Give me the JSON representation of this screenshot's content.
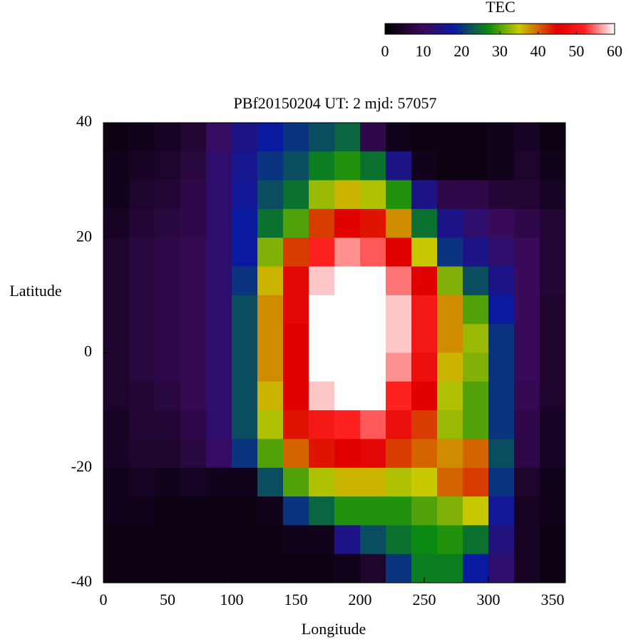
{
  "chart_data": {
    "type": "heatmap",
    "title": "PBf20150204  UT: 2  mjd: 57057",
    "x_label": "Longitude",
    "y_label": "Latitude",
    "colorbar_label": "TEC",
    "xlim": [
      0,
      360
    ],
    "xticks": [
      0,
      50,
      100,
      150,
      200,
      250,
      300,
      350
    ],
    "ylim": [
      -40,
      40
    ],
    "yticks": [
      -40,
      -20,
      0,
      20,
      40
    ],
    "clim": [
      0,
      60
    ],
    "cticks": [
      0,
      10,
      20,
      30,
      40,
      50,
      60
    ],
    "colorscale": [
      [
        0,
        "#000000"
      ],
      [
        10,
        "#3a0a5a"
      ],
      [
        18,
        "#0a1aa0"
      ],
      [
        27,
        "#0a8a10"
      ],
      [
        35,
        "#c8c800"
      ],
      [
        45,
        "#e00000"
      ],
      [
        52,
        "#ff2020"
      ],
      [
        60,
        "#ffffff"
      ]
    ],
    "xbins": [
      0,
      20,
      40,
      60,
      80,
      100,
      120,
      140,
      160,
      180,
      200,
      220,
      240,
      260,
      280,
      300,
      320,
      340,
      360
    ],
    "ybins": [
      40,
      35,
      30,
      25,
      20,
      15,
      10,
      5,
      0,
      -5,
      -10,
      -15,
      -20,
      -25,
      -30,
      -35,
      -40
    ],
    "z": [
      [
        2,
        3,
        4,
        6,
        11,
        15,
        18,
        20,
        22,
        24,
        8,
        3,
        2,
        2,
        2,
        3,
        4,
        2
      ],
      [
        3,
        4,
        5,
        7,
        12,
        16,
        20,
        22,
        26,
        28,
        25,
        15,
        3,
        2,
        2,
        3,
        5,
        3
      ],
      [
        3,
        5,
        6,
        8,
        12,
        17,
        22,
        25,
        33,
        36,
        34,
        28,
        15,
        8,
        8,
        6,
        6,
        4
      ],
      [
        4,
        6,
        7,
        8,
        12,
        18,
        25,
        30,
        42,
        45,
        44,
        38,
        25,
        15,
        12,
        10,
        8,
        6
      ],
      [
        5,
        7,
        8,
        9,
        12,
        18,
        32,
        42,
        52,
        56,
        54,
        45,
        35,
        20,
        15,
        12,
        10,
        6
      ],
      [
        5,
        7,
        8,
        9,
        12,
        20,
        36,
        46,
        58,
        60,
        60,
        55,
        45,
        32,
        22,
        15,
        10,
        6
      ],
      [
        5,
        7,
        8,
        9,
        12,
        22,
        38,
        46,
        60,
        60,
        60,
        58,
        50,
        38,
        30,
        18,
        10,
        5
      ],
      [
        5,
        7,
        8,
        9,
        12,
        22,
        38,
        45,
        60,
        60,
        60,
        58,
        50,
        38,
        33,
        20,
        10,
        5
      ],
      [
        5,
        7,
        8,
        9,
        12,
        22,
        38,
        45,
        60,
        60,
        60,
        56,
        48,
        36,
        32,
        20,
        10,
        5
      ],
      [
        5,
        6,
        7,
        9,
        12,
        22,
        36,
        45,
        58,
        60,
        60,
        52,
        45,
        34,
        30,
        20,
        9,
        5
      ],
      [
        4,
        6,
        6,
        8,
        12,
        22,
        34,
        44,
        50,
        52,
        54,
        48,
        42,
        33,
        30,
        20,
        8,
        4
      ],
      [
        4,
        5,
        5,
        7,
        11,
        20,
        30,
        40,
        44,
        45,
        46,
        42,
        40,
        38,
        40,
        22,
        8,
        4
      ],
      [
        3,
        4,
        3,
        4,
        3,
        3,
        22,
        30,
        34,
        36,
        36,
        34,
        35,
        40,
        42,
        20,
        5,
        3
      ],
      [
        3,
        3,
        2,
        2,
        2,
        2,
        3,
        20,
        24,
        28,
        28,
        28,
        30,
        32,
        35,
        17,
        4,
        3
      ],
      [
        2,
        2,
        2,
        2,
        2,
        2,
        2,
        3,
        3,
        15,
        22,
        25,
        27,
        28,
        25,
        14,
        4,
        2
      ],
      [
        2,
        2,
        2,
        2,
        2,
        2,
        2,
        2,
        2,
        3,
        5,
        20,
        26,
        26,
        18,
        12,
        4,
        2
      ]
    ]
  }
}
